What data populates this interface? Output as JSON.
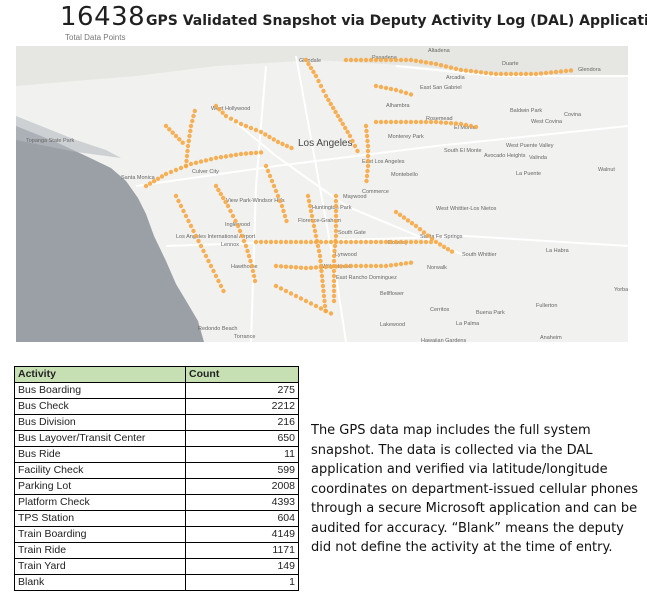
{
  "kpi": {
    "value": "16438",
    "label": "Total Data Points"
  },
  "title": "GPS Validated Snapshot via Deputy Activity Log (DAL) Application",
  "map": {
    "land_color": "#f1f1ef",
    "water_color": "#9aa0a6",
    "dot_color": "#f6a742",
    "places": [
      {
        "name": "Glendale"
      },
      {
        "name": "Pasadena"
      },
      {
        "name": "Altadena"
      },
      {
        "name": "Duarte"
      },
      {
        "name": "Glendora"
      },
      {
        "name": "Arcadia"
      },
      {
        "name": "East San Gabriel"
      },
      {
        "name": "Alhambra"
      },
      {
        "name": "Rosemead"
      },
      {
        "name": "El Monte"
      },
      {
        "name": "Baldwin Park"
      },
      {
        "name": "West Covina"
      },
      {
        "name": "Covina"
      },
      {
        "name": "West Hollywood"
      },
      {
        "name": "Los Angeles"
      },
      {
        "name": "Monterey Park"
      },
      {
        "name": "South El Monte"
      },
      {
        "name": "Avocado Heights"
      },
      {
        "name": "West Puente Valley"
      },
      {
        "name": "Valinda"
      },
      {
        "name": "Walnut"
      },
      {
        "name": "Culver City"
      },
      {
        "name": "Santa Monica"
      },
      {
        "name": "East Los Angeles"
      },
      {
        "name": "Montebello"
      },
      {
        "name": "Commerce"
      },
      {
        "name": "La Puente"
      },
      {
        "name": "Maywood"
      },
      {
        "name": "View Park-Windsor Hills"
      },
      {
        "name": "Huntington Park"
      },
      {
        "name": "Florence-Graham"
      },
      {
        "name": "West Whittier-Los Nietos"
      },
      {
        "name": "Inglewood"
      },
      {
        "name": "South Gate"
      },
      {
        "name": "Santa Fe Springs"
      },
      {
        "name": "Downey"
      },
      {
        "name": "Lennox"
      },
      {
        "name": "Lynwood"
      },
      {
        "name": "South Whittier"
      },
      {
        "name": "La Habra"
      },
      {
        "name": "Hawthorne"
      },
      {
        "name": "Willowbrook"
      },
      {
        "name": "East Rancho Dominguez"
      },
      {
        "name": "Norwalk"
      },
      {
        "name": "Bellflower"
      },
      {
        "name": "Cerritos"
      },
      {
        "name": "Buena Park"
      },
      {
        "name": "Fullerton"
      },
      {
        "name": "Yorba Linda"
      },
      {
        "name": "Lakewood"
      },
      {
        "name": "La Palma"
      },
      {
        "name": "Redondo Beach"
      },
      {
        "name": "Torrance"
      },
      {
        "name": "Hawaiian Gardens"
      },
      {
        "name": "Anaheim"
      },
      {
        "name": "Los Angeles International Airport"
      },
      {
        "name": "Topanga State Park"
      }
    ]
  },
  "table": {
    "header": {
      "activity": "Activity",
      "count": "Count"
    },
    "rows": [
      {
        "activity": "Bus Boarding",
        "count": "275"
      },
      {
        "activity": "Bus Check",
        "count": "2212"
      },
      {
        "activity": "Bus Division",
        "count": "216"
      },
      {
        "activity": "Bus Layover/Transit Center",
        "count": "650"
      },
      {
        "activity": "Bus Ride",
        "count": "11"
      },
      {
        "activity": "Facility Check",
        "count": "599"
      },
      {
        "activity": "Parking Lot",
        "count": "2008"
      },
      {
        "activity": "Platform Check",
        "count": "4393"
      },
      {
        "activity": "TPS Station",
        "count": "604"
      },
      {
        "activity": "Train Boarding",
        "count": "4149"
      },
      {
        "activity": "Train Ride",
        "count": "1171"
      },
      {
        "activity": "Train Yard",
        "count": "149"
      },
      {
        "activity": "Blank",
        "count": "1"
      }
    ]
  },
  "note": "The GPS data map includes the full system snapshot. The data is collected via the DAL application and verified via latitude/longitude coordinates on department-issued cellular phones through a secure Microsoft application and can be audited for accuracy. “Blank” means the deputy did not define the activity at the time of entry."
}
